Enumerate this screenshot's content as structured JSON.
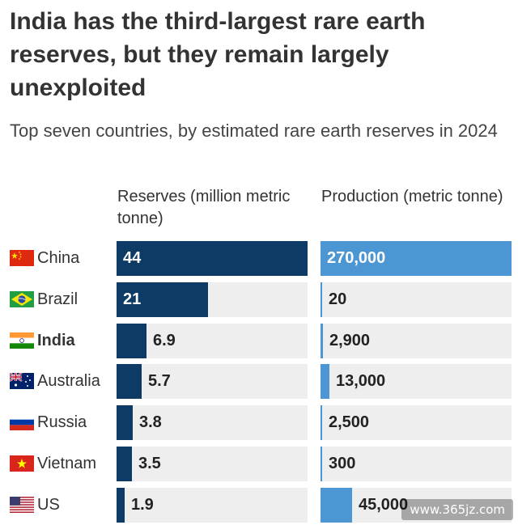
{
  "chart_data": {
    "type": "bar",
    "title": "India has the third-largest rare earth reserves, but they remain largely unexploited",
    "subtitle": "Top seven countries, by estimated rare earth reserves in 2024",
    "categories": [
      "China",
      "Brazil",
      "India",
      "Australia",
      "Russia",
      "Vietnam",
      "US"
    ],
    "highlight": "India",
    "series": [
      {
        "name": "Reserves (million metric tonne)",
        "values": [
          44,
          21,
          6.9,
          5.7,
          3.8,
          3.5,
          1.9
        ],
        "labels": [
          "44",
          "21",
          "6.9",
          "5.7",
          "3.8",
          "3.5",
          "1.9"
        ],
        "color": "#0d3b66",
        "xlim": [
          0,
          44
        ]
      },
      {
        "name": "Production (metric tonne)",
        "values": [
          270000,
          20,
          2900,
          13000,
          2500,
          300,
          45000
        ],
        "labels": [
          "270,000",
          "20",
          "2,900",
          "13,000",
          "2,500",
          "300",
          "45,000"
        ],
        "color": "#4b96d3",
        "xlim": [
          0,
          270000
        ]
      }
    ],
    "flags": [
      "china-flag-icon",
      "brazil-flag-icon",
      "india-flag-icon",
      "australia-flag-icon",
      "russia-flag-icon",
      "vietnam-flag-icon",
      "us-flag-icon"
    ],
    "track_color": "#eeeeee",
    "grid": false,
    "legend": "none"
  },
  "watermark": "www.365jz.com"
}
